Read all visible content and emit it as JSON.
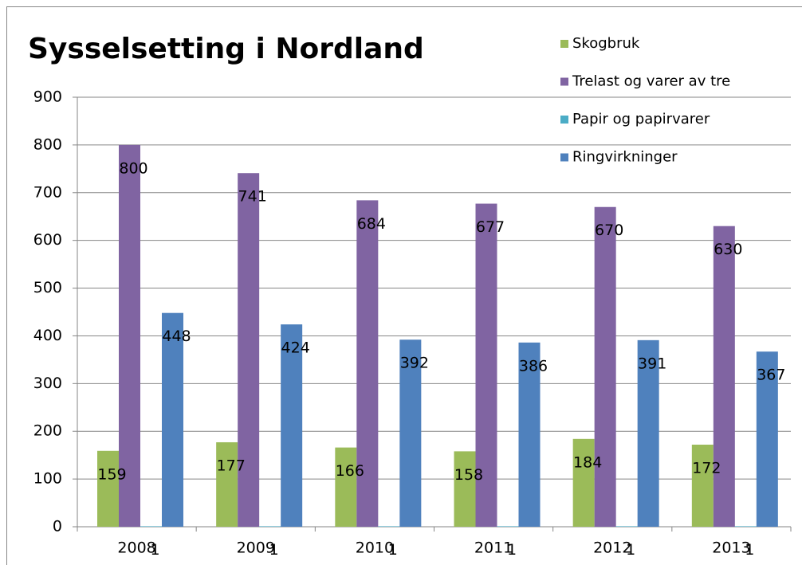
{
  "chart_data": {
    "type": "bar",
    "title": "Sysselsetting i Nordland",
    "categories": [
      "2008",
      "2009",
      "2010",
      "2011",
      "2012",
      "2013"
    ],
    "series": [
      {
        "name": "Skogbruk",
        "color": "#9bbb59",
        "values": [
          159,
          177,
          166,
          158,
          184,
          172
        ]
      },
      {
        "name": "Trelast og varer av tre",
        "color": "#8064a2",
        "values": [
          800,
          741,
          684,
          677,
          670,
          630
        ]
      },
      {
        "name": "Papir og papirvarer",
        "color": "#4bacc6",
        "values": [
          1,
          1,
          1,
          1,
          1,
          1
        ]
      },
      {
        "name": "Ringvirkninger",
        "color": "#4f81bd",
        "values": [
          448,
          424,
          392,
          386,
          391,
          367
        ]
      }
    ],
    "ylim": [
      0,
      900
    ],
    "yticks": [
      0,
      100,
      200,
      300,
      400,
      500,
      600,
      700,
      800,
      900
    ],
    "grid": true,
    "legend": "top-right"
  }
}
